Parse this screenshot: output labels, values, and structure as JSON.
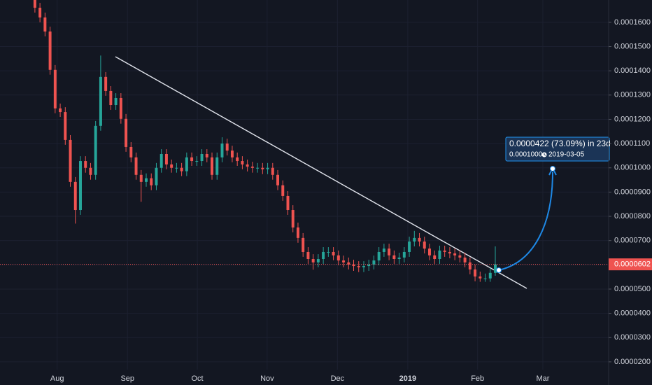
{
  "chart_data": {
    "type": "candlestick",
    "open": [
      0.00017,
      0.000166,
      0.000162,
      0.0001562,
      0.0001404,
      0.0001245,
      0.000123,
      0.0001115,
      9.42e-05,
      8.26e-05,
      0.0001028,
      0.0001,
      9.71e-05,
      0.0001173,
      0.0001375,
      0.0001317,
      0.0001259,
      0.0001288,
      0.0001202,
      0.0001086,
      0.0001043,
      9.71e-05,
      9.42e-05,
      9.57e-05,
      9.28e-05,
      0.0001,
      0.0001057,
      0.0001014,
      0.0001,
      0.0001,
      9.86e-05,
      0.0001043,
      0.0001028,
      0.0001028,
      0.0001057,
      0.0001043,
      9.71e-05,
      0.0001043,
      0.00011,
      0.0001071,
      0.0001043,
      0.0001028,
      0.0001014,
      0.0001005,
      0.0001,
      0.0001,
      9.94e-05,
      0.0001,
      9.71e-05,
      9.28e-05,
      8.84e-05,
      8.26e-05,
      7.54e-05,
      7.11e-05,
      6.53e-05,
      6.24e-05,
      6.1e-05,
      6.24e-05,
      6.53e-05,
      6.53e-05,
      6.39e-05,
      6.18e-05,
      6.1e-05,
      6.01e-05,
      5.95e-05,
      5.9e-05,
      5.95e-05,
      6.01e-05,
      6.18e-05,
      6.53e-05,
      6.67e-05,
      6.39e-05,
      6.24e-05,
      6.3e-05,
      6.53e-05,
      6.96e-05,
      7.11e-05,
      6.96e-05,
      6.67e-05,
      6.39e-05,
      6.24e-05,
      6.59e-05,
      6.53e-05,
      6.47e-05,
      6.39e-05,
      6.3e-05,
      6.1e-05,
      5.81e-05,
      5.52e-05,
      5.44e-05,
      5.44e-05,
      5.67e-05
    ],
    "high": [
      0.000172,
      0.000168,
      0.000164,
      0.0001582,
      0.0001424,
      0.0001265,
      0.000125,
      0.0001135,
      9.62e-05,
      0.0001048,
      0.0001048,
      0.000102,
      0.0001193,
      0.0001463,
      0.0001395,
      0.0001337,
      0.0001308,
      0.0001308,
      0.0001222,
      0.0001106,
      0.0001063,
      9.91e-05,
      9.77e-05,
      9.77e-05,
      0.000102,
      0.0001077,
      0.0001077,
      0.0001034,
      0.000102,
      0.000102,
      0.0001063,
      0.0001063,
      0.0001048,
      0.0001077,
      0.0001077,
      0.0001063,
      0.0001063,
      0.0001126,
      0.000112,
      0.0001091,
      0.0001063,
      0.0001048,
      0.0001034,
      0.0001025,
      0.000102,
      0.000102,
      0.000102,
      0.000102,
      9.91e-05,
      9.48e-05,
      9.04e-05,
      8.46e-05,
      7.74e-05,
      7.31e-05,
      6.73e-05,
      6.44e-05,
      6.44e-05,
      6.73e-05,
      6.73e-05,
      6.73e-05,
      6.59e-05,
      6.38e-05,
      6.3e-05,
      6.21e-05,
      6.15e-05,
      6.15e-05,
      6.21e-05,
      6.38e-05,
      6.73e-05,
      6.87e-05,
      6.87e-05,
      6.59e-05,
      6.5e-05,
      6.73e-05,
      7.16e-05,
      7.4e-05,
      7.31e-05,
      7.16e-05,
      6.87e-05,
      6.59e-05,
      6.79e-05,
      6.79e-05,
      6.73e-05,
      6.67e-05,
      6.59e-05,
      6.5e-05,
      6.3e-05,
      6.01e-05,
      5.72e-05,
      5.64e-05,
      5.87e-05,
      6.76e-05
    ],
    "low": [
      0.000164,
      0.00016,
      0.0001542,
      0.0001384,
      0.0001225,
      0.000121,
      0.0001095,
      9.22e-05,
      7.7e-05,
      8.06e-05,
      9.8e-05,
      9.51e-05,
      9.51e-05,
      0.0001153,
      0.0001297,
      0.0001239,
      0.0001239,
      0.0001182,
      0.0001066,
      0.0001023,
      9.51e-05,
      8.6e-05,
      9.22e-05,
      9.08e-05,
      9.08e-05,
      9.8e-05,
      9.94e-05,
      9.8e-05,
      9.8e-05,
      9.66e-05,
      9.66e-05,
      0.0001008,
      0.0001008,
      0.0001008,
      0.0001023,
      9.51e-05,
      9.51e-05,
      0.0001023,
      0.0001051,
      0.0001023,
      0.0001008,
      9.94e-05,
      9.85e-05,
      9.8e-05,
      9.8e-05,
      9.74e-05,
      9.74e-05,
      9.51e-05,
      9.08e-05,
      8.64e-05,
      8.06e-05,
      7.34e-05,
      6.91e-05,
      6.33e-05,
      6.04e-05,
      5.8e-05,
      5.9e-05,
      6.04e-05,
      6.33e-05,
      6.19e-05,
      5.98e-05,
      5.9e-05,
      5.81e-05,
      5.75e-05,
      5.7e-05,
      5.7e-05,
      5.75e-05,
      5.81e-05,
      5.98e-05,
      6.33e-05,
      6.19e-05,
      6.04e-05,
      6.04e-05,
      6.1e-05,
      6.33e-05,
      6.76e-05,
      6.76e-05,
      6.47e-05,
      6.19e-05,
      6.04e-05,
      6.04e-05,
      6.33e-05,
      6.27e-05,
      6.19e-05,
      6.1e-05,
      5.9e-05,
      5.61e-05,
      5.32e-05,
      5.3e-05,
      5.3e-05,
      5.3e-05,
      5.55e-05
    ],
    "close": [
      0.000166,
      0.000162,
      0.0001562,
      0.0001404,
      0.0001245,
      0.000123,
      0.0001115,
      9.42e-05,
      8.26e-05,
      0.0001028,
      0.0001,
      9.71e-05,
      0.0001173,
      0.0001375,
      0.0001317,
      0.0001259,
      0.0001288,
      0.0001202,
      0.0001086,
      0.0001043,
      9.71e-05,
      9.42e-05,
      9.57e-05,
      9.28e-05,
      0.0001,
      0.0001057,
      0.0001014,
      0.0001,
      0.0001,
      9.86e-05,
      0.0001043,
      0.0001028,
      0.0001028,
      0.0001057,
      0.0001043,
      9.71e-05,
      0.0001043,
      0.00011,
      0.0001071,
      0.0001043,
      0.0001028,
      0.0001014,
      0.0001005,
      0.0001,
      0.0001,
      9.94e-05,
      0.0001,
      9.71e-05,
      9.28e-05,
      8.84e-05,
      8.26e-05,
      7.54e-05,
      7.11e-05,
      6.53e-05,
      6.24e-05,
      6.1e-05,
      6.24e-05,
      6.53e-05,
      6.53e-05,
      6.39e-05,
      6.18e-05,
      6.1e-05,
      6.01e-05,
      5.95e-05,
      5.9e-05,
      5.95e-05,
      6.01e-05,
      6.18e-05,
      6.53e-05,
      6.67e-05,
      6.39e-05,
      6.24e-05,
      6.3e-05,
      6.53e-05,
      6.96e-05,
      7.11e-05,
      6.96e-05,
      6.67e-05,
      6.39e-05,
      6.24e-05,
      6.59e-05,
      6.53e-05,
      6.47e-05,
      6.39e-05,
      6.3e-05,
      6.1e-05,
      5.81e-05,
      5.52e-05,
      5.44e-05,
      5.44e-05,
      5.67e-05,
      6.02e-05
    ],
    "colors": {
      "up": "#26a69a",
      "down": "#ef5350"
    },
    "ylim": [
      1.68e-05,
      0.0001692
    ],
    "yticks": [
      {
        "value": 2e-05,
        "label": "0.0000200"
      },
      {
        "value": 3e-05,
        "label": "0.0000300"
      },
      {
        "value": 4e-05,
        "label": "0.0000400"
      },
      {
        "value": 5e-05,
        "label": "0.0000500"
      },
      {
        "value": 6e-05,
        "label": "0.0000600"
      },
      {
        "value": 7e-05,
        "label": "0.0000700"
      },
      {
        "value": 8e-05,
        "label": "0.0000800"
      },
      {
        "value": 9e-05,
        "label": "0.0000900"
      },
      {
        "value": 0.0001,
        "label": "0.0001000"
      },
      {
        "value": 0.00011,
        "label": "0.0001100"
      },
      {
        "value": 0.00012,
        "label": "0.0001200"
      },
      {
        "value": 0.00013,
        "label": "0.0001300"
      },
      {
        "value": 0.00014,
        "label": "0.0001400"
      },
      {
        "value": 0.00015,
        "label": "0.0001500"
      },
      {
        "value": 0.00016,
        "label": "0.0001600"
      }
    ],
    "xlim": [
      -6.9,
      113.4
    ],
    "xticks": [
      {
        "value": 4.4,
        "label": "Aug"
      },
      {
        "value": 18.3,
        "label": "Sep"
      },
      {
        "value": 32.1,
        "label": "Oct"
      },
      {
        "value": 45.9,
        "label": "Nov"
      },
      {
        "value": 59.8,
        "label": "Dec"
      },
      {
        "value": 73.7,
        "label": "2019"
      },
      {
        "value": 87.5,
        "label": "Feb"
      },
      {
        "value": 100.4,
        "label": "Mar"
      }
    ],
    "last_price": {
      "value": 6.02e-05,
      "label": "0.0000602"
    },
    "projection": {
      "change_label": "0.0000422 (73.09%) in 23d",
      "target_label": "0.0001000",
      "date_label": "2019-03-05"
    }
  }
}
